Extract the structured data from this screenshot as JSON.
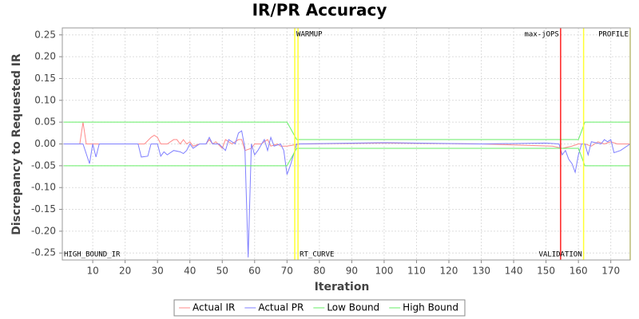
{
  "chart_data": {
    "type": "line",
    "title": "IR/PR Accuracy",
    "x_label": "Iteration",
    "y_label": "Discrepancy to Requested IR",
    "xlim": [
      0.6,
      176
    ],
    "xticks": [
      10,
      20,
      30,
      40,
      50,
      60,
      70,
      80,
      90,
      100,
      110,
      120,
      130,
      140,
      150,
      160,
      170
    ],
    "ylim": [
      -0.266,
      0.266
    ],
    "yticks": [
      {
        "value": -0.25,
        "label": "-0.25"
      },
      {
        "value": -0.2,
        "label": "-0.20"
      },
      {
        "value": -0.15,
        "label": "-0.15"
      },
      {
        "value": -0.1,
        "label": "-0.10"
      },
      {
        "value": -0.05,
        "label": "-0.05"
      },
      {
        "value": 0,
        "label": "0.00"
      },
      {
        "value": 0.05,
        "label": "0.05"
      },
      {
        "value": 0.1,
        "label": "0.10"
      },
      {
        "value": 0.15,
        "label": "0.15"
      },
      {
        "value": 0.2,
        "label": "0.20"
      },
      {
        "value": 0.25,
        "label": "0.25"
      }
    ],
    "grid": true,
    "legend": "bottom",
    "series": [
      {
        "name": "Actual IR",
        "color": "#ff8a8a",
        "x": [
          1,
          6,
          7,
          8,
          24,
          26,
          28,
          29,
          30,
          31,
          33,
          35,
          36,
          37,
          38,
          39,
          40,
          41,
          43,
          45,
          46,
          47,
          48,
          50,
          51,
          53,
          55,
          56,
          57,
          59,
          60,
          62,
          64,
          65,
          67,
          68,
          70,
          74,
          100,
          130,
          152,
          155,
          158,
          160,
          162,
          164,
          166,
          168,
          170,
          172,
          176
        ],
        "values": [
          0,
          0,
          0.05,
          0,
          0,
          0,
          0.015,
          0.02,
          0.015,
          0,
          0,
          0.01,
          0.01,
          0,
          0.01,
          0,
          0.005,
          -0.005,
          0,
          0,
          0.01,
          0,
          0.005,
          -0.01,
          0.01,
          0,
          0.01,
          0.01,
          -0.015,
          -0.01,
          0,
          0,
          0.01,
          -0.005,
          0,
          -0.005,
          -0.005,
          0,
          0.002,
          0,
          -0.005,
          -0.01,
          -0.005,
          0,
          0,
          -0.005,
          0.005,
          0,
          0.005,
          0,
          0
        ]
      },
      {
        "name": "Actual PR",
        "color": "#7f7fff",
        "x": [
          1,
          7,
          9,
          10,
          11,
          12,
          24,
          25,
          27,
          28,
          30,
          31,
          32,
          33,
          35,
          37,
          38,
          39,
          40,
          41,
          43,
          45,
          46,
          47,
          49,
          51,
          52,
          54,
          55,
          56,
          57,
          58,
          59,
          60,
          61,
          63,
          64,
          65,
          66,
          68,
          69,
          70,
          71,
          73,
          100,
          130,
          150,
          154,
          155,
          156,
          157,
          158,
          159,
          160,
          161,
          162,
          163,
          164,
          167,
          168,
          169,
          170,
          171,
          173,
          176
        ],
        "values": [
          0,
          0,
          -0.045,
          0,
          -0.03,
          0,
          0,
          -0.03,
          -0.028,
          0,
          0,
          -0.028,
          -0.018,
          -0.025,
          -0.015,
          -0.018,
          -0.022,
          -0.015,
          0,
          -0.01,
          0,
          0,
          0.015,
          0,
          0,
          -0.015,
          0.01,
          0,
          0.025,
          0.03,
          -0.01,
          -0.26,
          0,
          -0.025,
          -0.015,
          0.01,
          -0.015,
          0.015,
          -0.005,
          0,
          -0.015,
          -0.07,
          -0.05,
          0,
          0.003,
          0,
          0.002,
          0,
          -0.025,
          -0.015,
          -0.035,
          -0.045,
          -0.065,
          -0.025,
          0,
          0,
          -0.025,
          0.005,
          0,
          0.01,
          0.005,
          0.01,
          -0.02,
          -0.015,
          0
        ]
      },
      {
        "name": "Low Bound",
        "color": "#66ee66",
        "x": [
          1,
          70,
          73,
          160,
          162,
          176
        ],
        "values": [
          -0.05,
          -0.05,
          -0.01,
          -0.01,
          -0.05,
          -0.05
        ]
      },
      {
        "name": "High Bound",
        "color": "#66ee66",
        "x": [
          1,
          70,
          73,
          160,
          162,
          176
        ],
        "values": [
          0.05,
          0.05,
          0.01,
          0.01,
          0.05,
          0.05
        ]
      }
    ],
    "markers": [
      {
        "x": 72.4,
        "color": "#ffff33"
      },
      {
        "x": 73.4,
        "color": "#ffff33"
      },
      {
        "x": 154.5,
        "color": "#ff2020"
      },
      {
        "x": 161.6,
        "color": "#ffff33"
      },
      {
        "x": 176,
        "color": "#ffff33"
      }
    ],
    "annotations": [
      {
        "text": "WARMUP",
        "x": 72.4,
        "side": "top",
        "align": "start"
      },
      {
        "text": "max-jOPS",
        "x": 154.5,
        "side": "top",
        "align": "end"
      },
      {
        "text": "PROFILE",
        "x": 176,
        "side": "top",
        "align": "end"
      },
      {
        "text": "HIGH_BOUND_IR",
        "x": 0.6,
        "side": "bottom",
        "align": "start"
      },
      {
        "text": "RT_CURVE",
        "x": 73.4,
        "side": "bottom",
        "align": "start"
      },
      {
        "text": "VALIDATION",
        "x": 161.6,
        "side": "bottom",
        "align": "end"
      }
    ]
  }
}
